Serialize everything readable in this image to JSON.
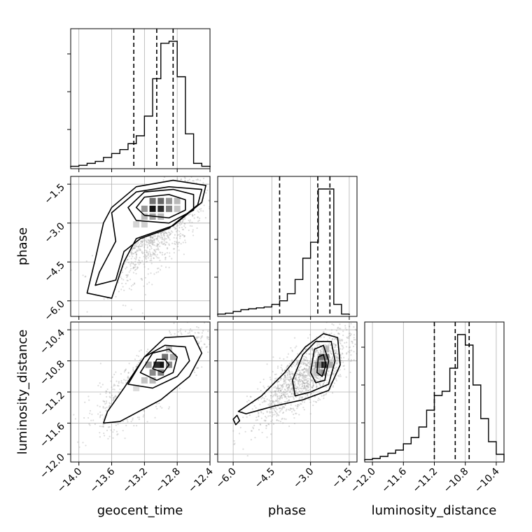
{
  "chart_data": {
    "type": "corner",
    "parameters": [
      "geocent_time",
      "phase",
      "luminosity_distance"
    ],
    "axis_labels": {
      "bottom": [
        "geocent_time",
        "phase",
        "luminosity_distance"
      ],
      "left": [
        "phase",
        "luminosity_distance"
      ]
    },
    "ranges": {
      "geocent_time": [
        -14.1,
        -12.4
      ],
      "phase": [
        -6.6,
        -1.2
      ],
      "luminosity_distance": [
        -12.1,
        -10.3
      ]
    },
    "ticks": {
      "geocent_time": [
        -14.0,
        -13.6,
        -13.2,
        -12.8,
        -12.4
      ],
      "phase": [
        -6.0,
        -4.5,
        -3.0,
        -1.5
      ],
      "luminosity_distance": [
        -12.0,
        -11.6,
        -11.2,
        -10.8,
        -10.4
      ]
    },
    "tick_labels": {
      "geocent_time": [
        "−14.0",
        "−13.6",
        "−13.2",
        "−12.8",
        "−12.4"
      ],
      "phase": [
        "−6.0",
        "−4.5",
        "−3.0",
        "−1.5"
      ],
      "luminosity_distance": [
        "−12.0",
        "−11.6",
        "−11.2",
        "−10.8",
        "−10.4"
      ]
    },
    "quantiles": {
      "geocent_time": [
        -13.33,
        -13.05,
        -12.85
      ],
      "phase": [
        -4.2,
        -2.72,
        -2.25
      ],
      "luminosity_distance": [
        -11.2,
        -10.93,
        -10.75
      ]
    },
    "histograms": {
      "geocent_time": {
        "edges": [
          -14.1,
          -14.0,
          -13.9,
          -13.8,
          -13.7,
          -13.6,
          -13.5,
          -13.4,
          -13.3,
          -13.2,
          -13.1,
          -13.0,
          -12.9,
          -12.8,
          -12.7,
          -12.6,
          -12.5,
          -12.4
        ],
        "counts": [
          0.5,
          1,
          2,
          3,
          5,
          7,
          9,
          12,
          16,
          26,
          45,
          63,
          64,
          46,
          17,
          2,
          0.5
        ]
      },
      "phase": {
        "edges": [
          -6.6,
          -6.3,
          -6.0,
          -5.7,
          -5.4,
          -5.1,
          -4.8,
          -4.5,
          -4.2,
          -3.9,
          -3.6,
          -3.3,
          -3.0,
          -2.7,
          -2.4,
          -2.1,
          -1.8,
          -1.5
        ],
        "counts": [
          0.5,
          1,
          2,
          3,
          3.5,
          4,
          4.5,
          6,
          8,
          12,
          20,
          32,
          41,
          71,
          71,
          6,
          0.5
        ]
      },
      "luminosity_distance": {
        "edges": [
          -12.1,
          -12.0,
          -11.9,
          -11.8,
          -11.7,
          -11.6,
          -11.5,
          -11.4,
          -11.3,
          -11.2,
          -11.1,
          -11.0,
          -10.9,
          -10.8,
          -10.7,
          -10.6,
          -10.5,
          -10.4,
          -10.3
        ],
        "counts": [
          0.5,
          1,
          2,
          3.5,
          5,
          8,
          11,
          16,
          24,
          31,
          33,
          44,
          60,
          55,
          36,
          20,
          9,
          3
        ]
      }
    },
    "pairs": [
      {
        "x": "geocent_time",
        "y": "phase",
        "center": [
          -13.0,
          -2.5
        ],
        "scatter": {
          "mean": [
            -13.05,
            -3.2
          ],
          "sd": [
            0.3,
            1.0
          ],
          "rho": 0.7
        },
        "contours": [
          [
            [
              -13.3,
              -2.4
            ],
            [
              -13.2,
              -2.0
            ],
            [
              -12.9,
              -1.9
            ],
            [
              -12.7,
              -2.1
            ],
            [
              -12.7,
              -2.5
            ],
            [
              -12.9,
              -2.8
            ],
            [
              -13.2,
              -2.7
            ]
          ],
          [
            [
              -13.4,
              -2.4
            ],
            [
              -13.2,
              -1.8
            ],
            [
              -12.85,
              -1.7
            ],
            [
              -12.6,
              -1.9
            ],
            [
              -12.6,
              -2.5
            ],
            [
              -12.9,
              -3.0
            ],
            [
              -13.3,
              -2.9
            ]
          ],
          [
            [
              -13.6,
              -2.6
            ],
            [
              -13.3,
              -1.8
            ],
            [
              -12.9,
              -1.6
            ],
            [
              -12.5,
              -1.7
            ],
            [
              -12.55,
              -2.3
            ],
            [
              -12.9,
              -3.2
            ],
            [
              -13.25,
              -3.6
            ],
            [
              -13.45,
              -4.1
            ],
            [
              -13.55,
              -5.2
            ],
            [
              -13.8,
              -5.4
            ],
            [
              -13.75,
              -4.9
            ],
            [
              -13.55,
              -3.7
            ]
          ],
          [
            [
              -13.6,
              -2.4
            ],
            [
              -13.3,
              -1.6
            ],
            [
              -12.85,
              -1.35
            ],
            [
              -12.45,
              -1.55
            ],
            [
              -12.5,
              -2.2
            ],
            [
              -12.85,
              -3.1
            ],
            [
              -13.3,
              -3.6
            ],
            [
              -13.45,
              -4.5
            ],
            [
              -13.6,
              -5.9
            ],
            [
              -13.9,
              -5.7
            ],
            [
              -13.8,
              -4.4
            ],
            [
              -13.7,
              -3.0
            ]
          ]
        ],
        "density_cells": [
          {
            "x": -13.1,
            "y": -2.45,
            "v": 1.0
          },
          {
            "x": -13.0,
            "y": -2.45,
            "v": 0.9
          },
          {
            "x": -13.1,
            "y": -2.15,
            "v": 0.6
          },
          {
            "x": -13.0,
            "y": -2.15,
            "v": 0.65
          },
          {
            "x": -12.9,
            "y": -2.15,
            "v": 0.45
          },
          {
            "x": -12.9,
            "y": -2.45,
            "v": 0.55
          },
          {
            "x": -13.2,
            "y": -2.45,
            "v": 0.45
          },
          {
            "x": -13.2,
            "y": -2.75,
            "v": 0.3
          },
          {
            "x": -13.1,
            "y": -2.75,
            "v": 0.4
          },
          {
            "x": -13.0,
            "y": -2.75,
            "v": 0.3
          },
          {
            "x": -12.8,
            "y": -2.15,
            "v": 0.3
          },
          {
            "x": -12.8,
            "y": -2.45,
            "v": 0.25
          },
          {
            "x": -13.3,
            "y": -3.05,
            "v": 0.18
          },
          {
            "x": -13.2,
            "y": -3.05,
            "v": 0.2
          }
        ]
      },
      {
        "x": "geocent_time",
        "y": "luminosity_distance",
        "center": [
          -13.0,
          -10.87
        ],
        "scatter": {
          "mean": [
            -13.1,
            -11.0
          ],
          "sd": [
            0.32,
            0.3
          ],
          "rho": 0.8
        },
        "contours": [
          [
            [
              -13.1,
              -10.9
            ],
            [
              -13.05,
              -10.78
            ],
            [
              -12.95,
              -10.78
            ],
            [
              -12.9,
              -10.85
            ],
            [
              -12.97,
              -10.95
            ]
          ],
          [
            [
              -13.25,
              -10.95
            ],
            [
              -13.1,
              -10.7
            ],
            [
              -12.9,
              -10.65
            ],
            [
              -12.8,
              -10.75
            ],
            [
              -12.85,
              -10.95
            ],
            [
              -13.05,
              -11.05
            ]
          ],
          [
            [
              -13.4,
              -11.1
            ],
            [
              -13.2,
              -10.75
            ],
            [
              -12.95,
              -10.6
            ],
            [
              -12.7,
              -10.62
            ],
            [
              -12.65,
              -10.8
            ],
            [
              -12.8,
              -11.0
            ],
            [
              -13.1,
              -11.15
            ]
          ],
          [
            [
              -13.65,
              -11.45
            ],
            [
              -13.45,
              -11.15
            ],
            [
              -13.2,
              -10.75
            ],
            [
              -12.95,
              -10.5
            ],
            [
              -12.6,
              -10.48
            ],
            [
              -12.5,
              -10.7
            ],
            [
              -12.65,
              -11.0
            ],
            [
              -13.0,
              -11.3
            ],
            [
              -13.5,
              -11.58
            ],
            [
              -13.7,
              -11.6
            ]
          ]
        ],
        "density_cells": [
          {
            "x": -13.0,
            "y": -10.85,
            "v": 1.0
          },
          {
            "x": -13.05,
            "y": -10.85,
            "v": 0.9
          },
          {
            "x": -12.95,
            "y": -10.75,
            "v": 0.6
          },
          {
            "x": -13.1,
            "y": -10.95,
            "v": 0.5
          },
          {
            "x": -13.0,
            "y": -10.95,
            "v": 0.55
          },
          {
            "x": -12.9,
            "y": -10.85,
            "v": 0.5
          },
          {
            "x": -13.15,
            "y": -10.85,
            "v": 0.4
          },
          {
            "x": -12.85,
            "y": -10.75,
            "v": 0.35
          },
          {
            "x": -13.2,
            "y": -11.05,
            "v": 0.25
          },
          {
            "x": -13.1,
            "y": -11.05,
            "v": 0.3
          },
          {
            "x": -12.9,
            "y": -10.65,
            "v": 0.25
          },
          {
            "x": -13.3,
            "y": -11.15,
            "v": 0.15
          }
        ]
      },
      {
        "x": "phase",
        "y": "luminosity_distance",
        "center": [
          -2.5,
          -10.87
        ],
        "scatter": {
          "mean": [
            -3.2,
            -11.0
          ],
          "sd": [
            1.0,
            0.3
          ],
          "rho": 0.8
        },
        "contours": [
          [
            [
              -2.75,
              -10.95
            ],
            [
              -2.7,
              -10.75
            ],
            [
              -2.5,
              -10.72
            ],
            [
              -2.4,
              -10.85
            ],
            [
              -2.55,
              -11.0
            ]
          ],
          [
            [
              -3.0,
              -10.95
            ],
            [
              -2.85,
              -10.65
            ],
            [
              -2.5,
              -10.6
            ],
            [
              -2.3,
              -10.8
            ],
            [
              -2.45,
              -11.05
            ],
            [
              -2.8,
              -11.08
            ]
          ],
          [
            [
              -3.7,
              -11.05
            ],
            [
              -3.3,
              -10.72
            ],
            [
              -2.8,
              -10.55
            ],
            [
              -2.2,
              -10.55
            ],
            [
              -2.05,
              -10.8
            ],
            [
              -2.3,
              -11.1
            ],
            [
              -3.0,
              -11.2
            ],
            [
              -3.6,
              -11.25
            ]
          ],
          [
            [
              -5.8,
              -11.45
            ],
            [
              -4.9,
              -11.25
            ],
            [
              -4.0,
              -10.95
            ],
            [
              -3.2,
              -10.62
            ],
            [
              -2.5,
              -10.45
            ],
            [
              -1.95,
              -10.5
            ],
            [
              -1.85,
              -10.85
            ],
            [
              -2.3,
              -11.18
            ],
            [
              -3.3,
              -11.3
            ],
            [
              -4.4,
              -11.38
            ],
            [
              -5.5,
              -11.48
            ]
          ],
          [
            [
              -6.0,
              -11.55
            ],
            [
              -5.85,
              -11.5
            ],
            [
              -5.75,
              -11.57
            ],
            [
              -5.9,
              -11.62
            ]
          ]
        ],
        "density_cells": [
          {
            "x": -2.55,
            "y": -10.85,
            "v": 1.0
          },
          {
            "x": -2.4,
            "y": -10.85,
            "v": 0.85
          },
          {
            "x": -2.55,
            "y": -10.75,
            "v": 0.6
          },
          {
            "x": -2.4,
            "y": -10.75,
            "v": 0.55
          },
          {
            "x": -2.7,
            "y": -10.85,
            "v": 0.5
          },
          {
            "x": -2.55,
            "y": -10.95,
            "v": 0.5
          },
          {
            "x": -2.7,
            "y": -10.95,
            "v": 0.4
          },
          {
            "x": -2.25,
            "y": -10.85,
            "v": 0.35
          },
          {
            "x": -2.85,
            "y": -10.95,
            "v": 0.25
          },
          {
            "x": -2.4,
            "y": -10.65,
            "v": 0.3
          },
          {
            "x": -3.0,
            "y": -10.95,
            "v": 0.18
          }
        ]
      }
    ]
  }
}
